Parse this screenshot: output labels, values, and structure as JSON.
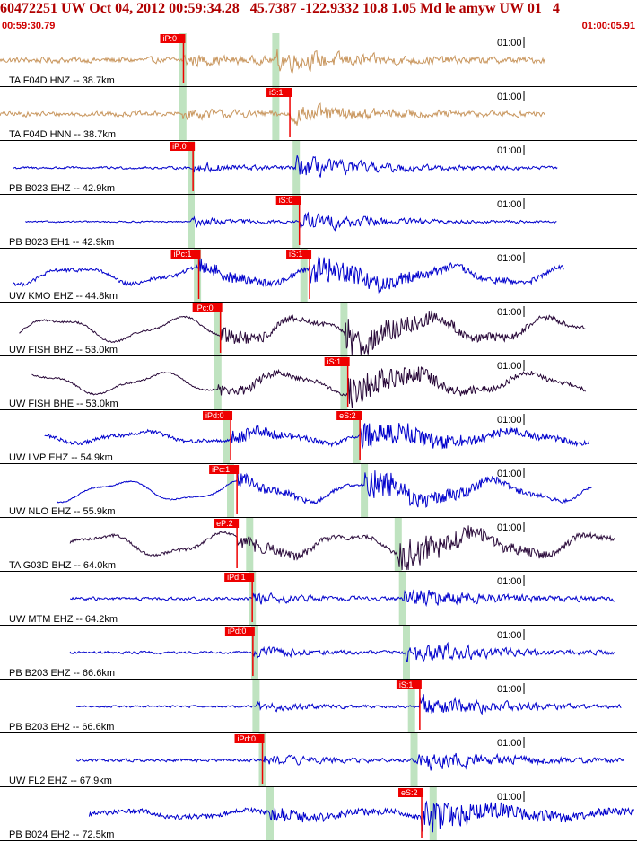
{
  "header": {
    "title": "60472251 UW Oct 04, 2012 00:59:34.28   45.7387 -122.9332 10.8 1.05 Md le amyw UW 01   4",
    "time_start": "00:59:30.79",
    "time_end": "01:00:05.91"
  },
  "colors": {
    "background": "#ffffff",
    "header_text": "#b00000",
    "separator": "#000000",
    "accelerometer": "#c8955c",
    "short_period": "#0000cc",
    "broadband": "#2a0a3a",
    "pick": "#ee0000",
    "pick_window": "#bfe3c0",
    "tick_text": "#000000"
  },
  "chart_data": {
    "type": "line",
    "x_range": [
      "00:59:30.79",
      "01:00:05.91"
    ],
    "tick_label": "01:00",
    "traces": [
      {
        "label": "TA F04D HNZ -- 38.7km",
        "color_key": "accelerometer",
        "start": 0.0,
        "end": 0.855,
        "amp": 0.5,
        "noise": 0.3,
        "smooth": 0,
        "p_pick": {
          "label": "iP:0",
          "x": 0.288
        },
        "s_pick": null,
        "p_win": 0.287,
        "s_win": 0.433
      },
      {
        "label": "TA F04D HNN -- 38.7km",
        "color_key": "accelerometer",
        "start": 0.0,
        "end": 0.855,
        "amp": 0.45,
        "noise": 0.3,
        "smooth": 0,
        "p_pick": null,
        "s_pick": {
          "label": "iS:1",
          "x": 0.455
        },
        "p_win": 0.287,
        "s_win": 0.433
      },
      {
        "label": "PB B023 EHZ -- 42.9km",
        "color_key": "short_period",
        "start": 0.02,
        "end": 0.875,
        "amp": 0.55,
        "noise": 0.12,
        "smooth": 0,
        "p_pick": {
          "label": "iP:0",
          "x": 0.303
        },
        "s_pick": null,
        "p_win": 0.3,
        "s_win": 0.465
      },
      {
        "label": "PB B023 EH1 -- 42.9km",
        "color_key": "short_period",
        "start": 0.04,
        "end": 0.875,
        "amp": 0.5,
        "noise": 0.08,
        "smooth": 0,
        "p_pick": null,
        "s_pick": {
          "label": "iS:0",
          "x": 0.47
        },
        "p_win": 0.3,
        "s_win": 0.465
      },
      {
        "label": "UW KMO EHZ -- 44.8km",
        "color_key": "short_period",
        "start": 0.02,
        "end": 0.885,
        "amp": 0.55,
        "noise": 0.12,
        "smooth": 0.9,
        "p_pick": {
          "label": "iPc:1",
          "x": 0.312
        },
        "s_pick": {
          "label": "iS:1",
          "x": 0.486
        },
        "p_win": 0.31,
        "s_win": 0.477
      },
      {
        "label": "UW FISH BHZ -- 53.0km",
        "color_key": "broadband",
        "start": 0.03,
        "end": 0.92,
        "amp": 0.7,
        "noise": 0.05,
        "smooth": 1.0,
        "p_pick": {
          "label": "iPc:0",
          "x": 0.346
        },
        "s_pick": null,
        "p_win": 0.342,
        "s_win": 0.54
      },
      {
        "label": "UW FISH BHE -- 53.0km",
        "color_key": "broadband",
        "start": 0.05,
        "end": 0.92,
        "amp": 0.6,
        "noise": 0.05,
        "smooth": 1.0,
        "p_pick": null,
        "s_pick": {
          "label": "iS:1",
          "x": 0.546
        },
        "p_win": 0.342,
        "s_win": 0.54
      },
      {
        "label": "UW LVP EHZ -- 54.9km",
        "color_key": "short_period",
        "start": 0.07,
        "end": 0.925,
        "amp": 0.55,
        "noise": 0.12,
        "smooth": 0.6,
        "p_pick": {
          "label": "iPd:0",
          "x": 0.362
        },
        "s_pick": {
          "label": "eS:2",
          "x": 0.565
        },
        "p_win": 0.355,
        "s_win": 0.56
      },
      {
        "label": "UW NLO EHZ -- 55.9km",
        "color_key": "short_period",
        "start": 0.09,
        "end": 0.93,
        "amp": 0.6,
        "noise": 0.04,
        "smooth": 1.0,
        "p_pick": {
          "label": "iPc:1",
          "x": 0.372
        },
        "s_pick": null,
        "p_win": 0.362,
        "s_win": 0.572
      },
      {
        "label": "TA G03D BHZ -- 64.0km",
        "color_key": "broadband",
        "start": 0.11,
        "end": 0.965,
        "amp": 0.65,
        "noise": 0.08,
        "smooth": 1.0,
        "p_pick": {
          "label": "eP:2",
          "x": 0.372
        },
        "s_pick": null,
        "p_win": 0.392,
        "s_win": 0.625
      },
      {
        "label": "UW MTM EHZ -- 64.2km",
        "color_key": "short_period",
        "start": 0.11,
        "end": 0.965,
        "amp": 0.55,
        "noise": 0.15,
        "smooth": 0,
        "p_pick": {
          "label": "iPd:1",
          "x": 0.396
        },
        "s_pick": null,
        "p_win": 0.396,
        "s_win": 0.632
      },
      {
        "label": "PB B203 EHZ -- 66.6km",
        "color_key": "short_period",
        "start": 0.11,
        "end": 0.965,
        "amp": 0.6,
        "noise": 0.12,
        "smooth": 0,
        "p_pick": {
          "label": "iPd:0",
          "x": 0.397
        },
        "s_pick": null,
        "p_win": 0.4,
        "s_win": 0.638
      },
      {
        "label": "PB B203 EH2 -- 66.6km",
        "color_key": "short_period",
        "start": 0.12,
        "end": 0.975,
        "amp": 0.55,
        "noise": 0.1,
        "smooth": 0,
        "p_pick": null,
        "s_pick": {
          "label": "iS:1",
          "x": 0.659
        },
        "p_win": 0.402,
        "s_win": 0.646
      },
      {
        "label": "UW FL2 EHZ -- 67.9km",
        "color_key": "short_period",
        "start": 0.12,
        "end": 0.98,
        "amp": 0.55,
        "noise": 0.15,
        "smooth": 0,
        "p_pick": {
          "label": "iPd:0",
          "x": 0.412
        },
        "s_pick": null,
        "p_win": 0.412,
        "s_win": 0.65
      },
      {
        "label": "PB B024 EH2 -- 72.5km",
        "color_key": "short_period",
        "start": 0.14,
        "end": 0.995,
        "amp": 0.55,
        "noise": 0.15,
        "smooth": 0.4,
        "p_pick": null,
        "s_pick": {
          "label": "eS:2",
          "x": 0.662
        },
        "p_win": 0.424,
        "s_win": 0.68
      }
    ],
    "xlabel": "",
    "ylabel": ""
  }
}
